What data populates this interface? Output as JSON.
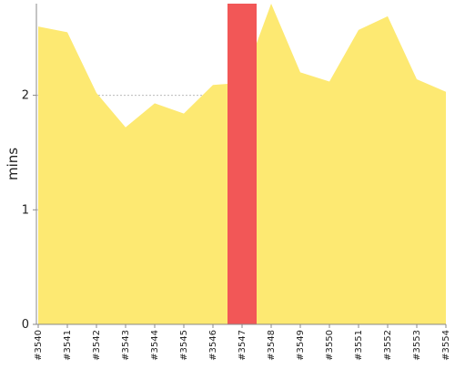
{
  "chart_data": {
    "type": "area",
    "ylabel": "mins",
    "xlabel": "",
    "title": "",
    "ylim": [
      0,
      2.8
    ],
    "yticks": [
      "0",
      "1",
      "2"
    ],
    "categories": [
      "#3540",
      "#3541",
      "#3542",
      "#3543",
      "#3544",
      "#3545",
      "#3546",
      "#3547",
      "#3548",
      "#3549",
      "#3550",
      "#3551",
      "#3552",
      "#3553",
      "#3554"
    ],
    "values": [
      2.6,
      2.55,
      2.02,
      1.72,
      1.93,
      1.84,
      2.09,
      2.11,
      2.8,
      2.2,
      2.12,
      2.57,
      2.69,
      2.14,
      2.03
    ],
    "highlight": {
      "from": "#3546",
      "to": "#3547",
      "color": "#f25757",
      "level": 2.8
    },
    "fill_color": "#fde972",
    "grid": "horizontal dotted",
    "legend": "none"
  }
}
